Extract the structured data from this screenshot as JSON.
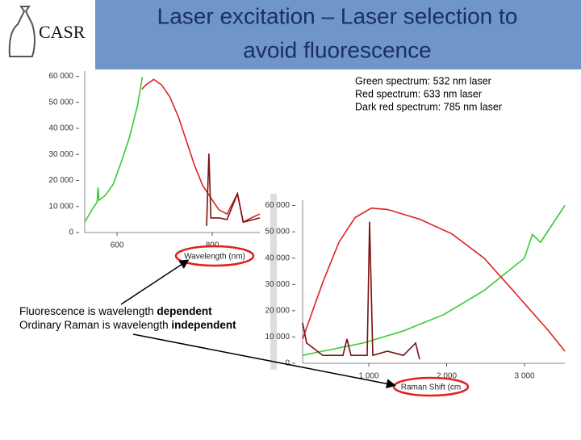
{
  "logo": "CASR",
  "title": [
    "Laser excitation – Laser selection to",
    "avoid fluorescence"
  ],
  "legend_notes": [
    "Green spectrum: 532 nm laser",
    "Red spectrum: 633 nm laser",
    "Dark red spectrum: 785 nm laser"
  ],
  "notes": [
    {
      "text": "Fluorescence is wavelength ",
      "emphasis": "dependent"
    },
    {
      "text": "Ordinary Raman is wavelength ",
      "emphasis": "independent"
    }
  ],
  "chart_data": [
    {
      "type": "line",
      "x_label": "Wavelength (nm)",
      "xlim": [
        532,
        900
      ],
      "xticks": [
        600,
        800
      ],
      "ylim": [
        0,
        62000
      ],
      "yticks": [
        0,
        {
          "value": 10000,
          "label": "10 000"
        },
        {
          "value": 20000,
          "label": "20 000"
        },
        {
          "value": 30000,
          "label": "30 000"
        },
        {
          "value": 40000,
          "label": "40 000"
        },
        {
          "value": 50000,
          "label": "50 000"
        },
        {
          "value": 60000,
          "label": "60 000"
        }
      ],
      "series": [
        {
          "color": "#33cc33",
          "x": [
            532,
            549,
            558,
            560,
            562,
            575,
            592,
            609,
            626,
            643,
            653
          ],
          "values": [
            4000,
            9300,
            11700,
            17300,
            12400,
            14200,
            18600,
            27200,
            36500,
            48900,
            59700
          ]
        },
        {
          "color": "#dd2222",
          "x": [
            652,
            660,
            677,
            694,
            711,
            729,
            746,
            763,
            780,
            797,
            814,
            831,
            853,
            865,
            882,
            900
          ],
          "values": [
            55000,
            56600,
            58800,
            56600,
            52000,
            44300,
            35000,
            25700,
            18000,
            13300,
            8700,
            7100,
            14900,
            4000,
            5600,
            7100
          ]
        },
        {
          "color": "#7a1010",
          "x": [
            788,
            793,
            797,
            814,
            831,
            853,
            865,
            900
          ],
          "values": [
            2500,
            30300,
            5600,
            5600,
            5000,
            14900,
            4000,
            5600
          ]
        }
      ]
    },
    {
      "type": "line",
      "x_label": "Raman Shift (cm",
      "xlim": [
        150,
        3518
      ],
      "xticks": [
        {
          "value": 1000,
          "label": "1 000"
        },
        {
          "value": 2000,
          "label": "2 000"
        },
        {
          "value": 3000,
          "label": "3 000"
        }
      ],
      "ylim": [
        0,
        62000
      ],
      "yticks": [
        0,
        {
          "value": 10000,
          "label": "10 000"
        },
        {
          "value": 20000,
          "label": "20 000"
        },
        {
          "value": 30000,
          "label": "30 000"
        },
        {
          "value": 40000,
          "label": "40 000"
        },
        {
          "value": 50000,
          "label": "50 000"
        },
        {
          "value": 60000,
          "label": "60 000"
        }
      ],
      "series": [
        {
          "color": "#33cc33",
          "x": [
            150,
            409,
            927,
            1445,
            1963,
            2481,
            2999,
            3100,
            3206,
            3518
          ],
          "values": [
            3000,
            4600,
            7700,
            12300,
            18500,
            27700,
            40000,
            49000,
            46000,
            60000
          ]
        },
        {
          "color": "#dd2222",
          "x": [
            150,
            409,
            616,
            824,
            1031,
            1238,
            1653,
            2067,
            2481,
            2896,
            3310,
            3518
          ],
          "values": [
            9200,
            30800,
            46000,
            55400,
            59000,
            58500,
            54800,
            49200,
            40000,
            26200,
            12300,
            4600
          ]
        },
        {
          "color": "#7a1010",
          "x": [
            150,
            202,
            409,
            668,
            720,
            772,
            979,
            1010,
            1052,
            1238,
            1445,
            1601,
            1653
          ],
          "values": [
            15400,
            7700,
            3000,
            3000,
            9200,
            3000,
            3000,
            53800,
            3000,
            4600,
            3000,
            7700,
            1500
          ]
        }
      ]
    }
  ]
}
